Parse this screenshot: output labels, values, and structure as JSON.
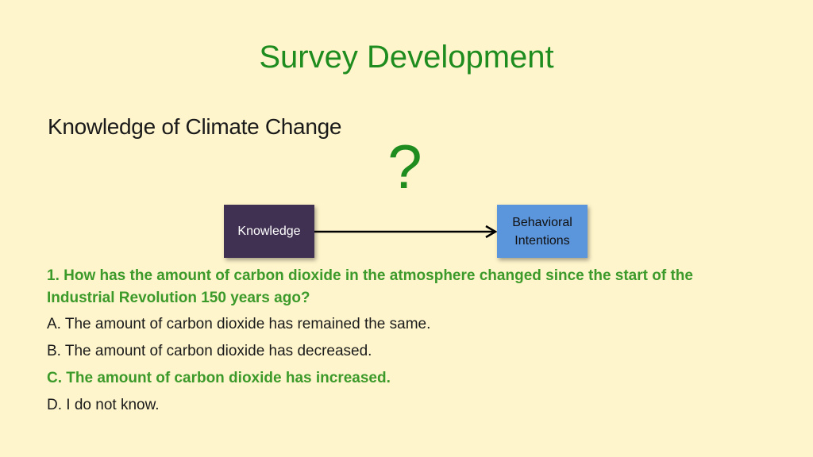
{
  "slide": {
    "title": "Survey Development",
    "subtitle": "Knowledge of Climate Change",
    "question_mark": "?"
  },
  "diagram": {
    "source_box": {
      "label": "Knowledge",
      "color": "#403152"
    },
    "target_box": {
      "label_line1": "Behavioral",
      "label_line2": "Intentions",
      "color": "#5b95dc"
    },
    "arrow": "right-arrow"
  },
  "question": {
    "text": "1. How has the amount of carbon dioxide in the atmosphere changed since the start of the Industrial Revolution 150 years ago?",
    "options": [
      {
        "label": "A. The amount of carbon dioxide has remained the same.",
        "correct": false
      },
      {
        "label": "B. The amount of carbon dioxide has decreased.",
        "correct": false
      },
      {
        "label": "C. The amount of carbon dioxide has increased.",
        "correct": true
      },
      {
        "label": "D. I do not know.",
        "correct": false
      }
    ]
  },
  "colors": {
    "background": "#fff5cc",
    "accent_green": "#1e8c1e",
    "highlight_green": "#3c9a2a"
  }
}
